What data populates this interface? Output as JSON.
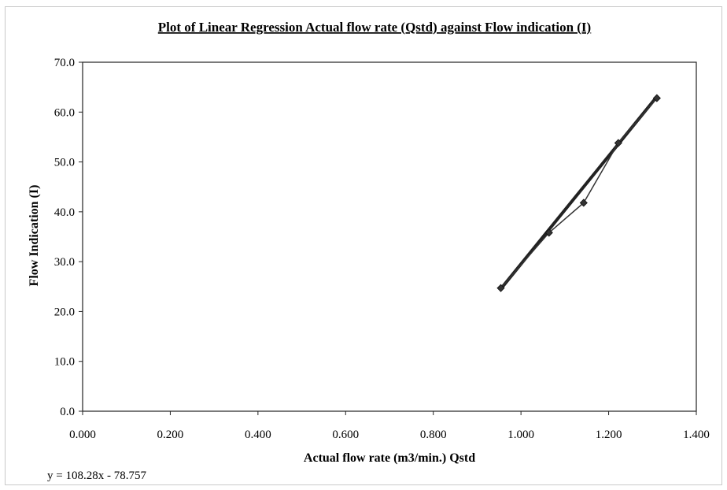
{
  "chart_data": {
    "type": "scatter",
    "title": "Plot of Linear Regression Actual flow rate (Qstd) against Flow indication (I)",
    "xlabel": "Actual flow rate (m3/min.) Qstd",
    "ylabel": "Flow Indication (I)",
    "xlim": [
      0.0,
      1.4
    ],
    "ylim": [
      0.0,
      70.0
    ],
    "x_ticks": [
      "0.000",
      "0.200",
      "0.400",
      "0.600",
      "0.800",
      "1.000",
      "1.200",
      "1.400"
    ],
    "y_ticks": [
      "0.0",
      "10.0",
      "20.0",
      "30.0",
      "40.0",
      "50.0",
      "60.0",
      "70.0"
    ],
    "grid": false,
    "legend": "none",
    "series": [
      {
        "x": [
          0.954,
          1.064,
          1.143,
          1.222,
          1.31
        ],
        "y": [
          24.7,
          35.8,
          41.8,
          53.8,
          62.8
        ],
        "marker": "diamond",
        "connected": true,
        "color": "#333333"
      }
    ],
    "trendline": {
      "slope": 108.28,
      "intercept": -78.757,
      "color": "#222222"
    },
    "annotations": [
      "y = 108.28x - 78.757"
    ]
  }
}
